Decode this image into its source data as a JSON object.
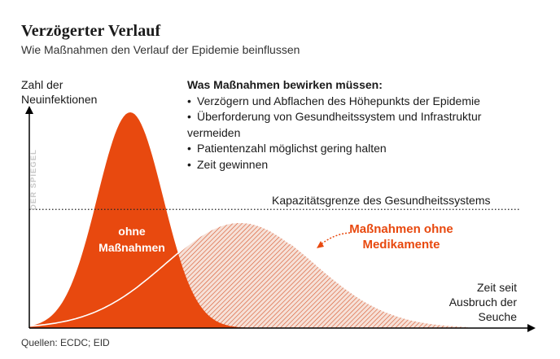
{
  "title": "Verzögerter Verlauf",
  "subtitle": "Wie Maßnahmen den Verlauf der Epidemie beinflussen",
  "y_axis_label": "Zahl der Neuinfektionen",
  "measures": {
    "heading": "Was Maßnahmen bewirken müssen:",
    "items": [
      "Verzögern und Abflachen des Höhepunkts der Epidemie",
      "Überforderung von Gesundheitssystem und Infrastruktur vermeiden",
      "Patientenzahl möglichst gering halten",
      "Zeit gewinnen"
    ]
  },
  "capacity_label": "Kapazitätsgrenze des Gesundheitssystems",
  "x_axis_label": "Zeit seit Ausbruch der Seuche",
  "watermark": "DER SPIEGEL",
  "source": "Quellen: ECDC; EID",
  "colors": {
    "accent": "#e8490f",
    "hatch_fill": "#f3ddd5",
    "text": "#1a1a1a",
    "axis": "#000000",
    "watermark": "#c8c8c8"
  },
  "chart_data": {
    "type": "area",
    "title": "Verzögerter Verlauf",
    "xlabel": "Zeit seit Ausbruch der Seuche",
    "ylabel": "Zahl der Neuinfektionen",
    "xlim": [
      0,
      100
    ],
    "ylim": [
      0,
      100
    ],
    "capacity_line": {
      "label": "Kapazitätsgrenze des Gesundheitssystems",
      "y": 55
    },
    "series": [
      {
        "name": "ohne Maßnahmen",
        "shape": "gaussian",
        "peak_x": 23,
        "peak_y": 100,
        "width": 7.5,
        "style": "solid"
      },
      {
        "name": "Maßnahmen ohne Medikamente",
        "shape": "gaussian",
        "peak_x": 48,
        "peak_y": 49,
        "width": 17,
        "style": "hatched"
      }
    ],
    "annotations": [
      "ohne Maßnahmen",
      "Maßnahmen ohne Medikamente"
    ],
    "grid": false
  }
}
